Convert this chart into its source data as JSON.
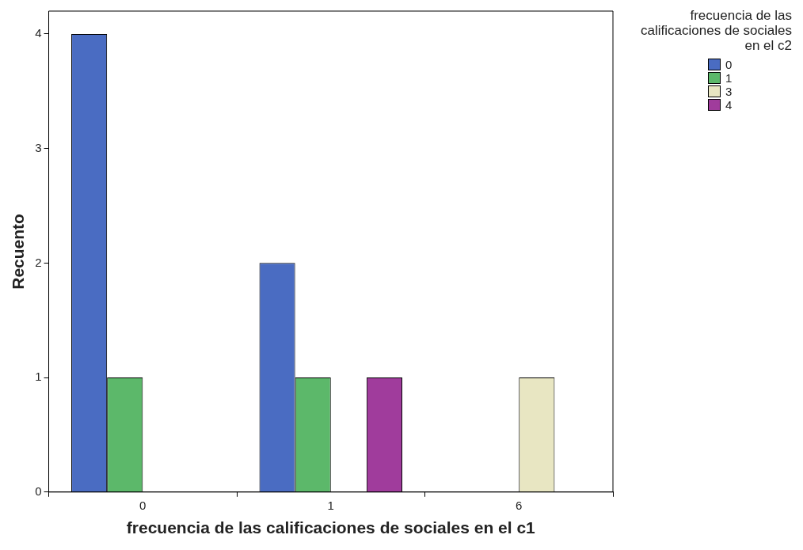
{
  "chart_data": {
    "type": "bar",
    "xlabel": "frecuencia de las calificaciones de sociales en el c1",
    "ylabel": "Recuento",
    "legend_title": "frecuencia de las calificaciones de sociales en el c2",
    "categories": [
      "0",
      "1",
      "6"
    ],
    "series": [
      {
        "name": "0",
        "color": "#4a6cc2",
        "values": [
          4,
          2,
          null
        ]
      },
      {
        "name": "1",
        "color": "#5cb86a",
        "values": [
          1,
          1,
          null
        ]
      },
      {
        "name": "3",
        "color": "#e8e6c2",
        "values": [
          null,
          null,
          1
        ]
      },
      {
        "name": "4",
        "color": "#a03c9c",
        "values": [
          null,
          1,
          null
        ]
      }
    ],
    "ylim": [
      0,
      4.2
    ],
    "yticks": [
      0,
      1,
      2,
      3,
      4
    ],
    "grid": false,
    "legend": "top right"
  }
}
